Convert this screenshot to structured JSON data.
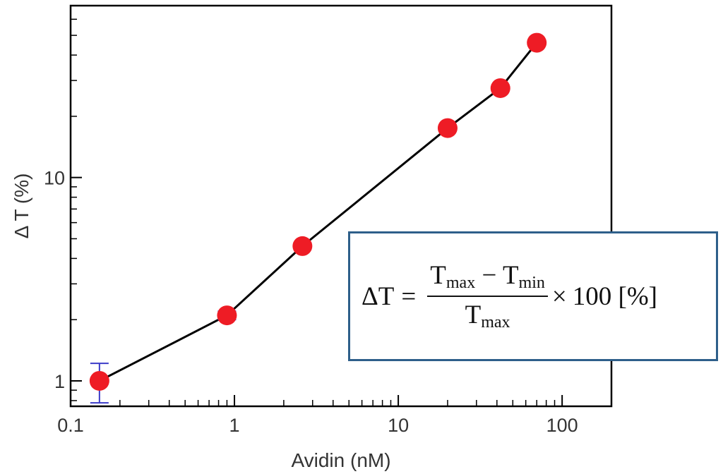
{
  "chart_data": {
    "type": "scatter",
    "xlabel": "Avidin (nM)",
    "ylabel": "Δ T (%)",
    "x_scale": "log",
    "y_scale": "log",
    "xlim": [
      0.1,
      200
    ],
    "ylim": [
      0.75,
      70
    ],
    "x_ticks": [
      {
        "value": 0.1,
        "label": "0.1"
      },
      {
        "value": 1,
        "label": "1"
      },
      {
        "value": 10,
        "label": "10"
      },
      {
        "value": 100,
        "label": "100"
      }
    ],
    "y_ticks": [
      {
        "value": 1,
        "label": "1"
      },
      {
        "value": 10,
        "label": "10"
      }
    ],
    "grid": false,
    "series": [
      {
        "color": "#ee1c25",
        "line_color": "#000000",
        "errorbar_color": "#3b3bc8",
        "points": [
          {
            "x": 0.15,
            "y": 1.0,
            "err": 0.22
          },
          {
            "x": 0.9,
            "y": 2.1,
            "err": 0.1
          },
          {
            "x": 2.6,
            "y": 4.6,
            "err": 0
          },
          {
            "x": 20,
            "y": 17.5,
            "err": 0
          },
          {
            "x": 42,
            "y": 27.5,
            "err": 0
          },
          {
            "x": 70,
            "y": 46,
            "err": 0
          }
        ]
      }
    ]
  },
  "equation": {
    "lhs": "ΔT",
    "equals": "=",
    "numerator_a": "T",
    "numerator_a_sub": "max",
    "minus": "−",
    "numerator_b": "T",
    "numerator_b_sub": "min",
    "denominator": "T",
    "denominator_sub": "max",
    "times": "×",
    "factor": "100 [%]"
  }
}
